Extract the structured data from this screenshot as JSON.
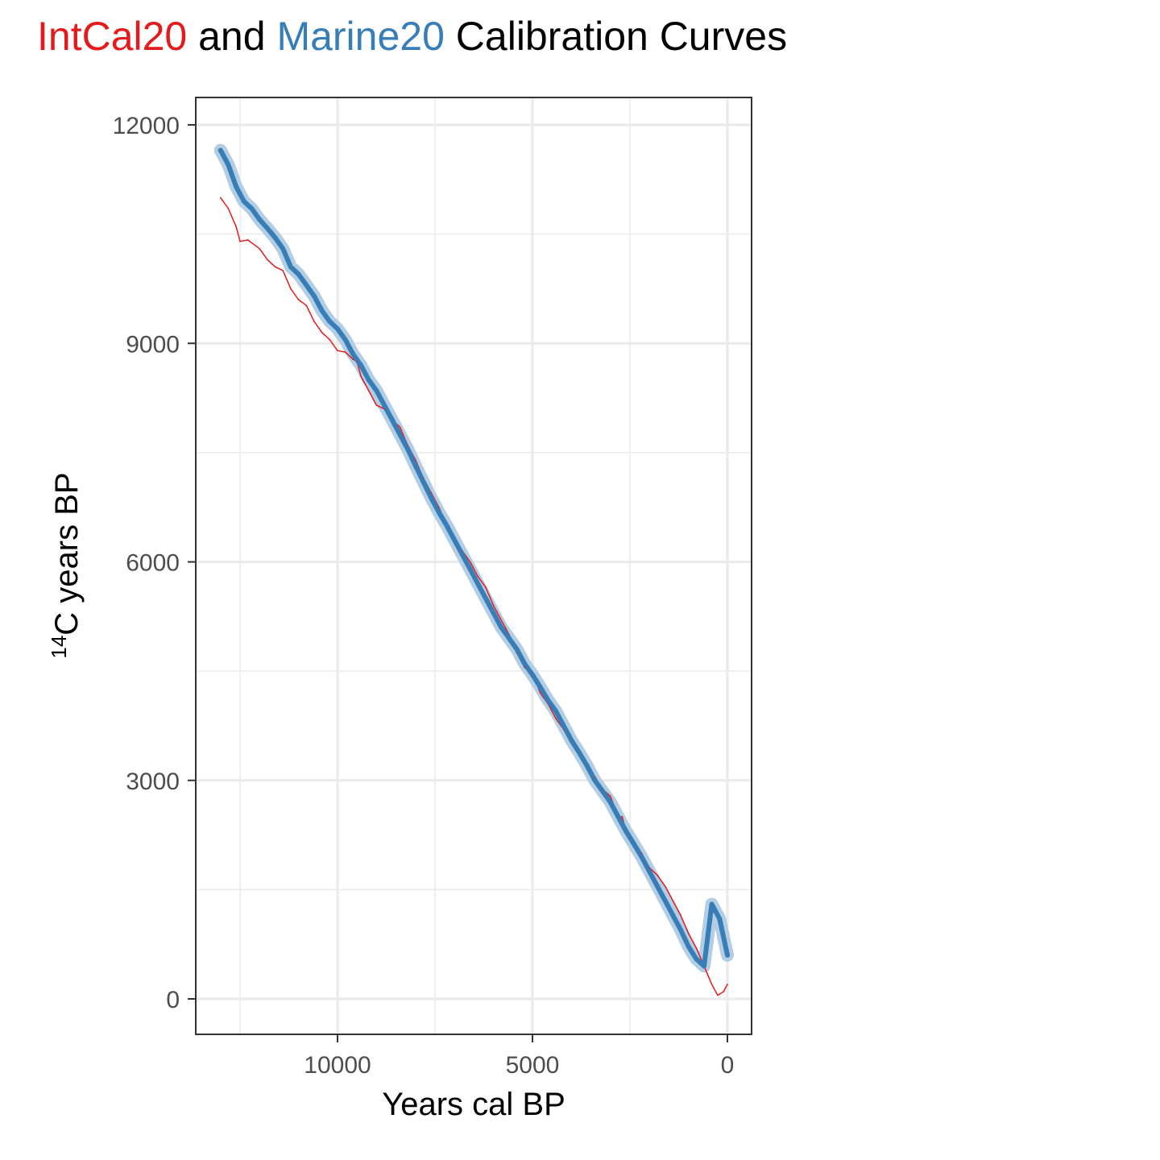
{
  "chart_data": {
    "type": "line",
    "title": {
      "parts": [
        {
          "text": "IntCal20",
          "color": "#e41a1c"
        },
        {
          "text": " and ",
          "color": "#000000"
        },
        {
          "text": "Marine20",
          "color": "#377eb8"
        },
        {
          "text": " Calibration Curves",
          "color": "#000000"
        }
      ]
    },
    "xlabel": "Years cal BP",
    "ylabel": {
      "sup": "14",
      "text": "C years BP"
    },
    "x_reversed": true,
    "xlim": [
      13000,
      0
    ],
    "ylim": [
      0,
      12000
    ],
    "x_ticks": [
      10000,
      5000,
      0
    ],
    "x_tick_labels": [
      "10000",
      "5000",
      "0"
    ],
    "y_ticks": [
      0,
      3000,
      6000,
      9000,
      12000
    ],
    "y_tick_labels": [
      "0",
      "3000",
      "6000",
      "9000",
      "12000"
    ],
    "grid": true,
    "legend": "none",
    "series": [
      {
        "name": "IntCal20",
        "color": "#e41a1c",
        "x": [
          13000,
          12800,
          12600,
          12500,
          12300,
          12000,
          11800,
          11600,
          11400,
          11200,
          11000,
          10800,
          10600,
          10400,
          10200,
          10000,
          9800,
          9600,
          9500,
          9400,
          9200,
          9000,
          8800,
          8600,
          8400,
          8200,
          8000,
          7800,
          7600,
          7400,
          7200,
          7000,
          6800,
          6600,
          6400,
          6200,
          6000,
          5800,
          5600,
          5400,
          5200,
          5000,
          4800,
          4600,
          4400,
          4200,
          4000,
          3800,
          3600,
          3400,
          3200,
          3000,
          2800,
          2700,
          2600,
          2400,
          2200,
          2000,
          1800,
          1600,
          1400,
          1200,
          1000,
          800,
          600,
          400,
          250,
          100,
          0
        ],
        "y": [
          11000,
          10850,
          10600,
          10400,
          10420,
          10300,
          10150,
          10050,
          10000,
          9750,
          9600,
          9520,
          9300,
          9150,
          9050,
          8900,
          8880,
          8780,
          8750,
          8550,
          8350,
          8150,
          8100,
          7950,
          7850,
          7600,
          7400,
          7150,
          6950,
          6750,
          6500,
          6300,
          6150,
          6000,
          5800,
          5650,
          5400,
          5200,
          5000,
          4750,
          4550,
          4480,
          4200,
          4050,
          3850,
          3700,
          3550,
          3400,
          3200,
          3050,
          2880,
          2780,
          2500,
          2500,
          2300,
          2150,
          2000,
          1800,
          1700,
          1550,
          1350,
          1150,
          900,
          700,
          450,
          200,
          50,
          100,
          200
        ]
      },
      {
        "name": "Marine20",
        "color": "#377eb8",
        "x": [
          13000,
          12800,
          12600,
          12400,
          12200,
          12000,
          11800,
          11600,
          11400,
          11200,
          11000,
          10800,
          10600,
          10400,
          10200,
          10000,
          9800,
          9600,
          9400,
          9200,
          9000,
          8800,
          8600,
          8400,
          8200,
          8000,
          7800,
          7600,
          7400,
          7200,
          7000,
          6800,
          6600,
          6400,
          6200,
          6000,
          5800,
          5600,
          5400,
          5200,
          5000,
          4800,
          4600,
          4400,
          4200,
          4000,
          3800,
          3600,
          3400,
          3200,
          3000,
          2800,
          2600,
          2400,
          2200,
          2000,
          1800,
          1600,
          1400,
          1200,
          1000,
          800,
          600,
          400,
          200,
          0
        ],
        "y": [
          11650,
          11450,
          11150,
          10950,
          10850,
          10700,
          10580,
          10450,
          10300,
          10050,
          9950,
          9800,
          9650,
          9450,
          9300,
          9200,
          9050,
          8850,
          8700,
          8500,
          8350,
          8150,
          7950,
          7750,
          7550,
          7320,
          7100,
          6880,
          6680,
          6500,
          6300,
          6100,
          5900,
          5700,
          5500,
          5300,
          5100,
          4950,
          4800,
          4600,
          4450,
          4280,
          4100,
          3950,
          3750,
          3550,
          3380,
          3200,
          3000,
          2850,
          2700,
          2500,
          2300,
          2130,
          1950,
          1750,
          1550,
          1350,
          1150,
          950,
          720,
          550,
          450,
          1300,
          1100,
          600
        ]
      }
    ]
  }
}
